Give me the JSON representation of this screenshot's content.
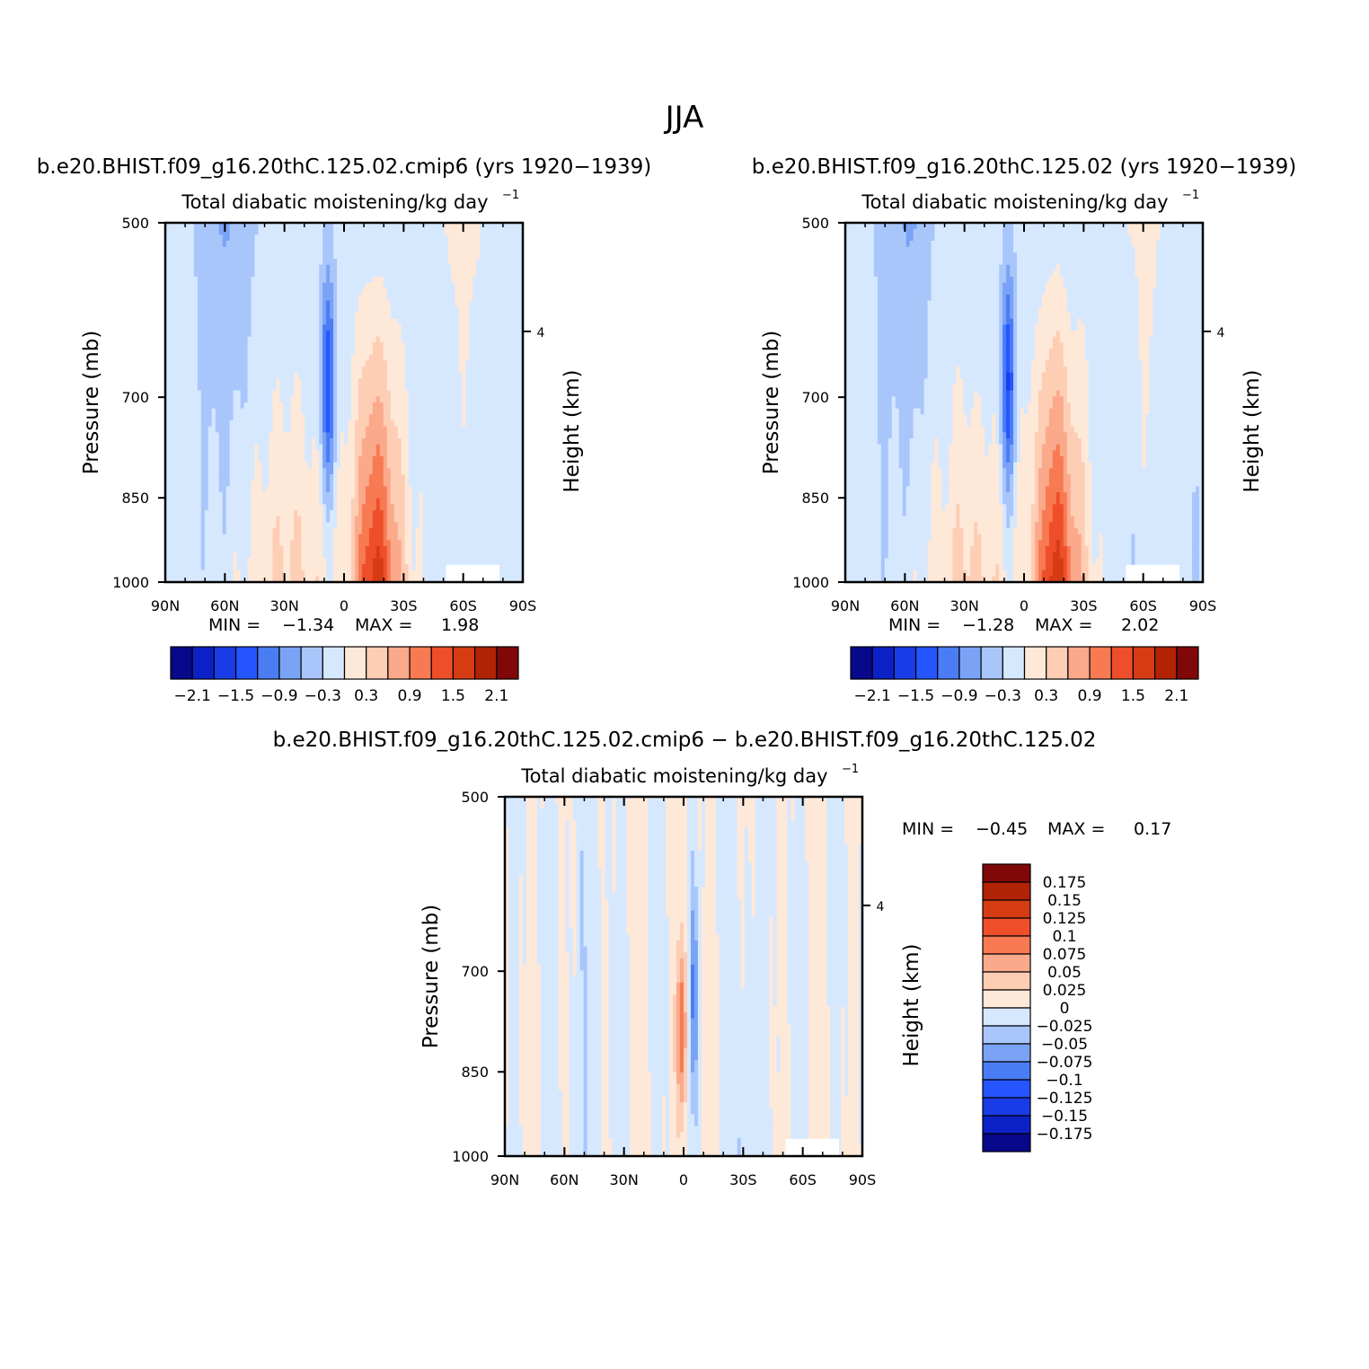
{
  "figure_title": "JJA",
  "colors": {
    "neg": [
      "#08088a",
      "#0c22c8",
      "#1a3ce6",
      "#2555ff",
      "#4a7df4",
      "#7aa3f6",
      "#a9c6fb",
      "#d6e8fe"
    ],
    "pos": [
      "#fee8d8",
      "#fdcdb4",
      "#fba98b",
      "#f77a52",
      "#ee4f2a",
      "#d63c14",
      "#b22305",
      "#800808"
    ]
  },
  "chart_data": [
    {
      "type": "heatmap",
      "title": "b.e20.BHIST.f09_g16.20thC.125.02.cmip6 (yrs 1920−1939)",
      "subtitle": "Total diabatic moistening/kg day",
      "subtitle_sup": "−1",
      "xlabel": "",
      "ylabel": "Pressure (mb)",
      "y2label": "Height (km)",
      "x_ticks": [
        "90N",
        "60N",
        "30N",
        "0",
        "30S",
        "60S",
        "90S"
      ],
      "x_range": [
        90,
        -90
      ],
      "y_ticks": [
        "500",
        "700",
        "850",
        "1000"
      ],
      "y_range": [
        500,
        1000
      ],
      "y2_ticks": [
        "4"
      ],
      "min_label": "MIN =",
      "min_value": "−1.34",
      "max_label": "MAX =",
      "max_value": "1.98",
      "colorbar_labels": [
        "−2.1",
        "−1.5",
        "−0.9",
        "−0.3",
        "0.3",
        "0.9",
        "1.5",
        "2.1"
      ]
    },
    {
      "type": "heatmap",
      "title": "b.e20.BHIST.f09_g16.20thC.125.02 (yrs 1920−1939)",
      "subtitle": "Total diabatic moistening/kg day",
      "subtitle_sup": "−1",
      "xlabel": "",
      "ylabel": "Pressure (mb)",
      "y2label": "Height (km)",
      "x_ticks": [
        "90N",
        "60N",
        "30N",
        "0",
        "30S",
        "60S",
        "90S"
      ],
      "x_range": [
        90,
        -90
      ],
      "y_ticks": [
        "500",
        "700",
        "850",
        "1000"
      ],
      "y_range": [
        500,
        1000
      ],
      "y2_ticks": [
        "4"
      ],
      "min_label": "MIN =",
      "min_value": "−1.28",
      "max_label": "MAX =",
      "max_value": "2.02",
      "colorbar_labels": [
        "−2.1",
        "−1.5",
        "−0.9",
        "−0.3",
        "0.3",
        "0.9",
        "1.5",
        "2.1"
      ]
    },
    {
      "type": "heatmap",
      "title": "b.e20.BHIST.f09_g16.20thC.125.02.cmip6 − b.e20.BHIST.f09_g16.20thC.125.02",
      "subtitle": "Total diabatic moistening/kg day",
      "subtitle_sup": "−1",
      "xlabel": "",
      "ylabel": "Pressure (mb)",
      "y2label": "Height (km)",
      "x_ticks": [
        "90N",
        "60N",
        "30N",
        "0",
        "30S",
        "60S",
        "90S"
      ],
      "x_range": [
        90,
        -90
      ],
      "y_ticks": [
        "500",
        "700",
        "850",
        "1000"
      ],
      "y_range": [
        500,
        1000
      ],
      "y2_ticks": [
        "4"
      ],
      "min_label": "MIN =",
      "min_value": "−0.45",
      "max_label": "MAX =",
      "max_value": "0.17",
      "colorbar_labels": [
        "0.175",
        "0.15",
        "0.125",
        "0.1",
        "0.075",
        "0.05",
        "0.025",
        "0",
        "−0.025",
        "−0.05",
        "−0.075",
        "−0.1",
        "−0.125",
        "−0.15",
        "−0.175"
      ]
    }
  ]
}
